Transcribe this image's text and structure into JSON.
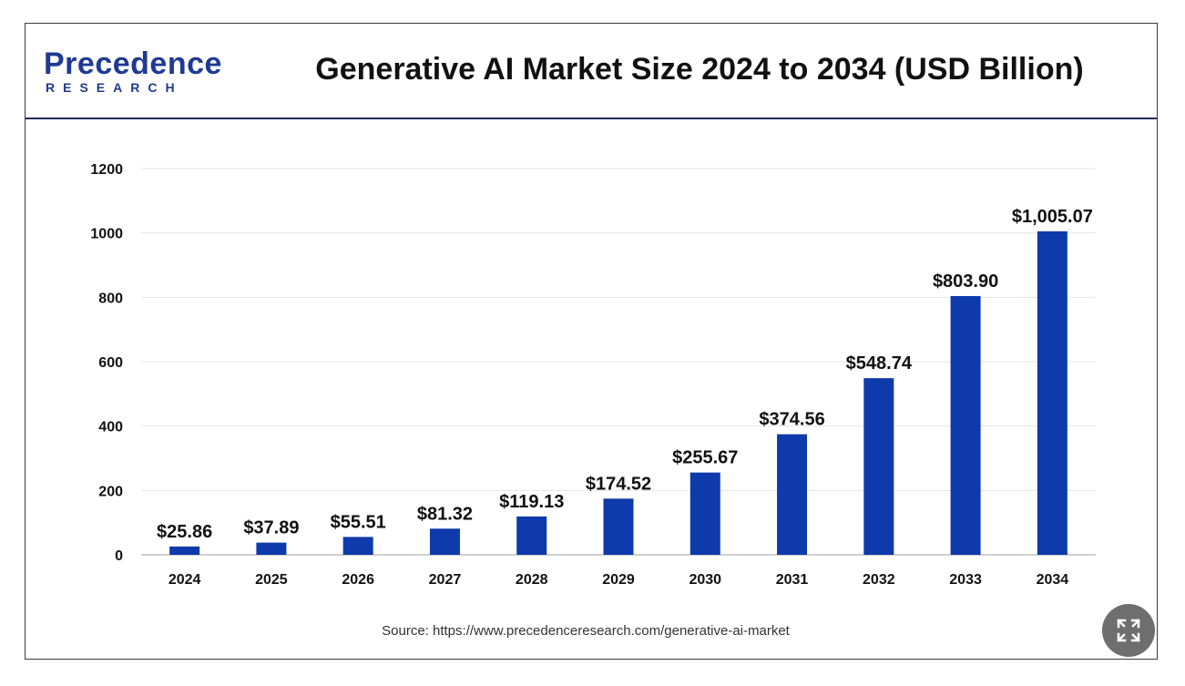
{
  "header": {
    "logo_word": "Precedence",
    "logo_sub": "RESEARCH",
    "title": "Generative AI Market Size 2024 to 2034 (USD Billion)"
  },
  "source": "Source: https://www.precedenceresearch.com/generative-ai-market",
  "colors": {
    "bar": "#0f3aab",
    "grid": "#e6e6e6",
    "text": "#111111",
    "header_rule": "#1e2a5a"
  },
  "chart_data": {
    "type": "bar",
    "categories": [
      "2024",
      "2025",
      "2026",
      "2027",
      "2028",
      "2029",
      "2030",
      "2031",
      "2032",
      "2033",
      "2034"
    ],
    "values": [
      25.86,
      37.89,
      55.51,
      81.32,
      119.13,
      174.52,
      255.67,
      374.56,
      548.74,
      803.9,
      1005.07
    ],
    "data_labels": [
      "$25.86",
      "$37.89",
      "$55.51",
      "$81.32",
      "$119.13",
      "$174.52",
      "$255.67",
      "$374.56",
      "$548.74",
      "$803.90",
      "$1,005.07"
    ],
    "yticks": [
      0,
      200,
      400,
      600,
      800,
      1000,
      1200
    ],
    "ylim": [
      0,
      1200
    ],
    "grid": true,
    "legend": "none"
  },
  "controls": {
    "expand_icon": "expand-icon"
  }
}
